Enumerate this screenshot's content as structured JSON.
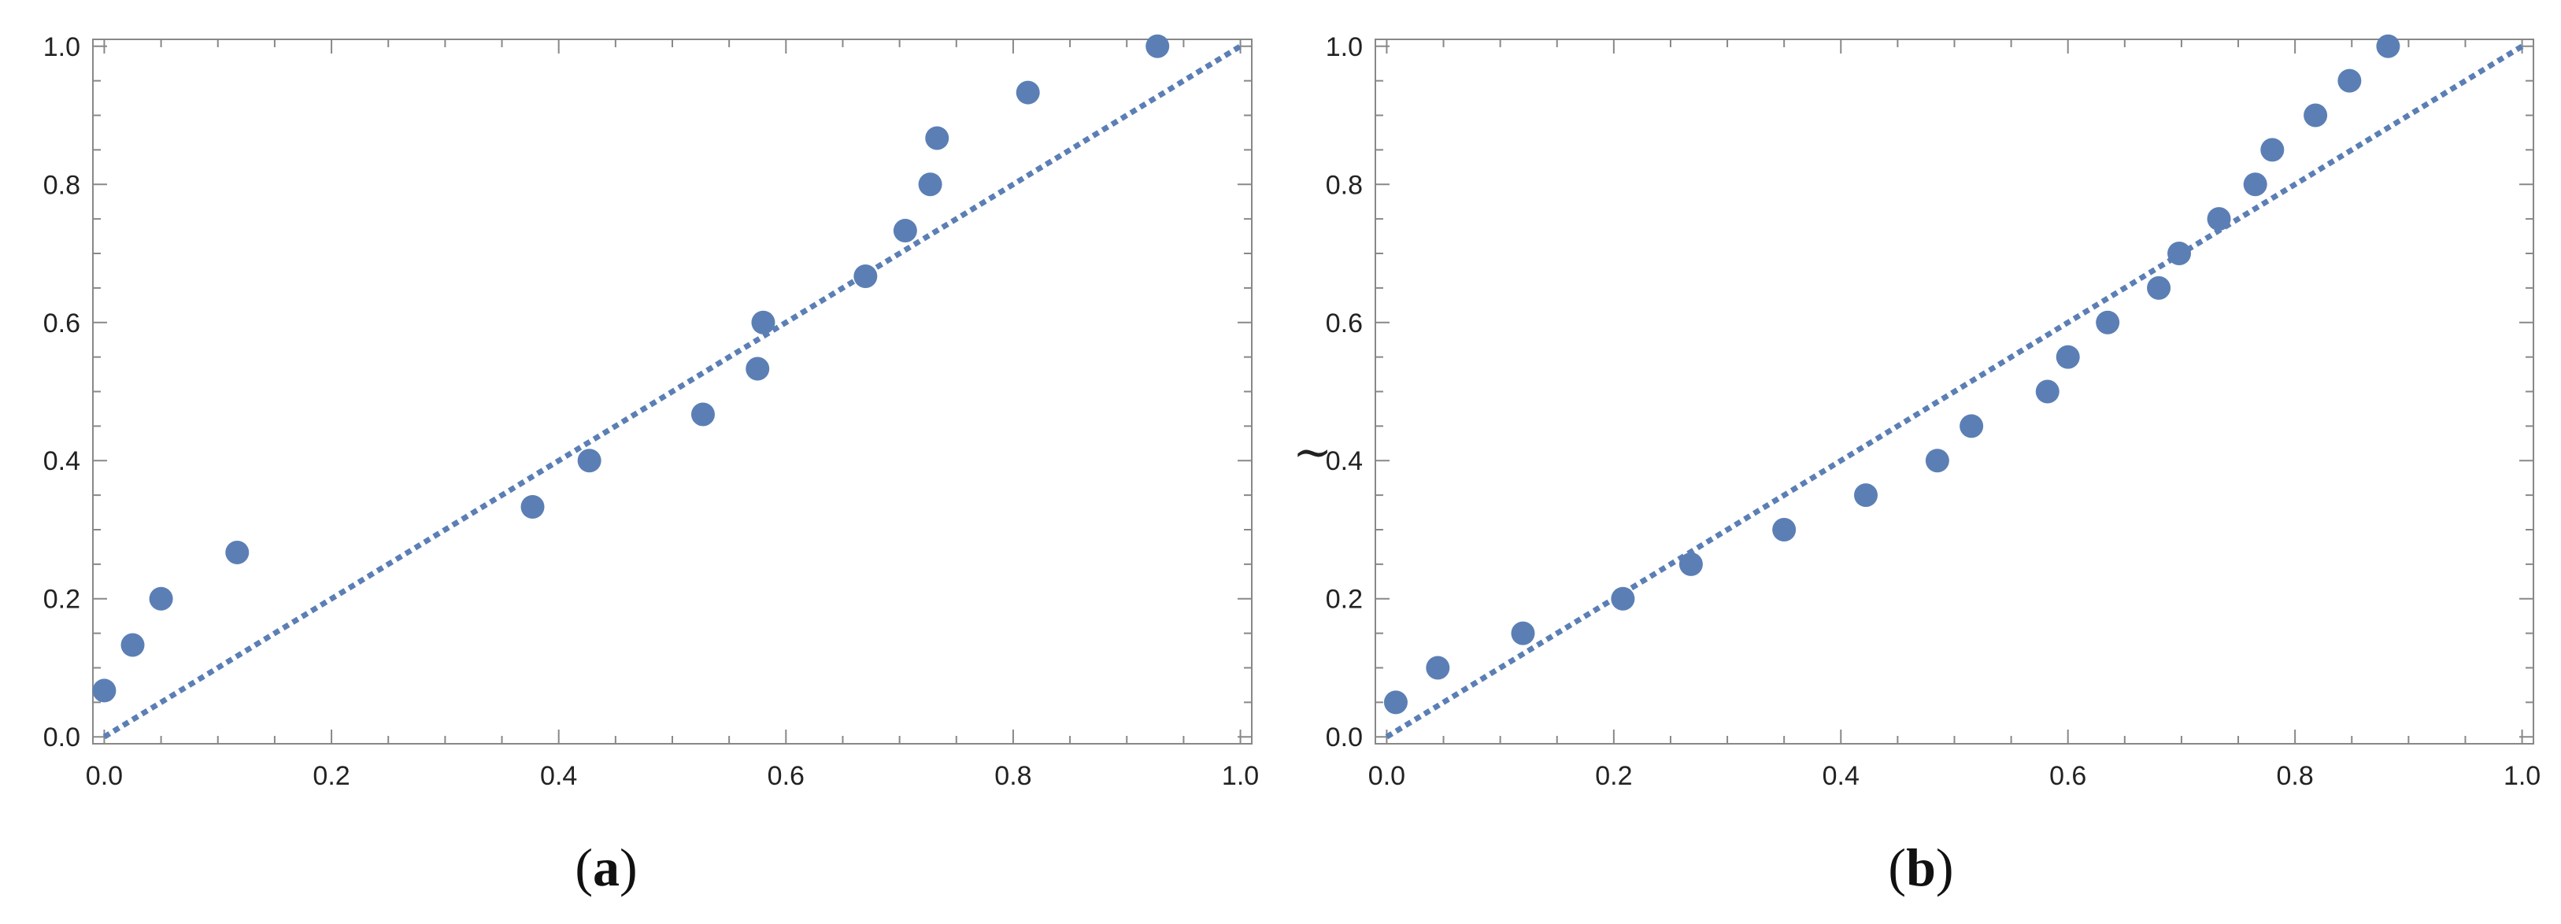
{
  "chart_data": [
    {
      "type": "scatter",
      "caption_open": "(",
      "caption_letter": "a",
      "caption_close": ")",
      "side_glyph": "",
      "xlim": [
        0,
        1
      ],
      "ylim": [
        0,
        1
      ],
      "xticks": [
        "0.0",
        "0.2",
        "0.4",
        "0.6",
        "0.8",
        "1.0"
      ],
      "yticks": [
        "0.0",
        "0.2",
        "0.4",
        "0.6",
        "0.8",
        "1.0"
      ],
      "grid": false,
      "reference_line": {
        "from": [
          0,
          0
        ],
        "to": [
          1,
          1
        ],
        "style": "dotted"
      },
      "points_x": [
        0.0,
        0.025,
        0.05,
        0.117,
        0.377,
        0.427,
        0.527,
        0.575,
        0.58,
        0.67,
        0.705,
        0.727,
        0.733,
        0.813,
        0.927
      ],
      "points_y": [
        0.067,
        0.133,
        0.2,
        0.267,
        0.333,
        0.4,
        0.467,
        0.533,
        0.6,
        0.667,
        0.733,
        0.8,
        0.867,
        0.933,
        1.0
      ]
    },
    {
      "type": "scatter",
      "caption_open": "(",
      "caption_letter": "b",
      "caption_close": ")",
      "side_glyph": "~",
      "xlim": [
        0,
        1
      ],
      "ylim": [
        0,
        1
      ],
      "xticks": [
        "0.0",
        "0.2",
        "0.4",
        "0.6",
        "0.8",
        "1.0"
      ],
      "yticks": [
        "0.0",
        "0.2",
        "0.4",
        "0.6",
        "0.8",
        "1.0"
      ],
      "grid": false,
      "reference_line": {
        "from": [
          0,
          0
        ],
        "to": [
          1,
          1
        ],
        "style": "dotted"
      },
      "points_x": [
        0.008,
        0.045,
        0.12,
        0.208,
        0.268,
        0.35,
        0.422,
        0.485,
        0.515,
        0.582,
        0.6,
        0.635,
        0.68,
        0.698,
        0.733,
        0.765,
        0.78,
        0.818,
        0.848,
        0.882
      ],
      "points_y": [
        0.05,
        0.1,
        0.15,
        0.2,
        0.25,
        0.3,
        0.35,
        0.4,
        0.45,
        0.5,
        0.55,
        0.6,
        0.65,
        0.7,
        0.75,
        0.8,
        0.85,
        0.9,
        0.95,
        1.0
      ]
    }
  ],
  "colors": {
    "marker": "#5b7fb5",
    "reference_line": "#5b7fb5",
    "frame": "#888888",
    "text": "#222222"
  }
}
